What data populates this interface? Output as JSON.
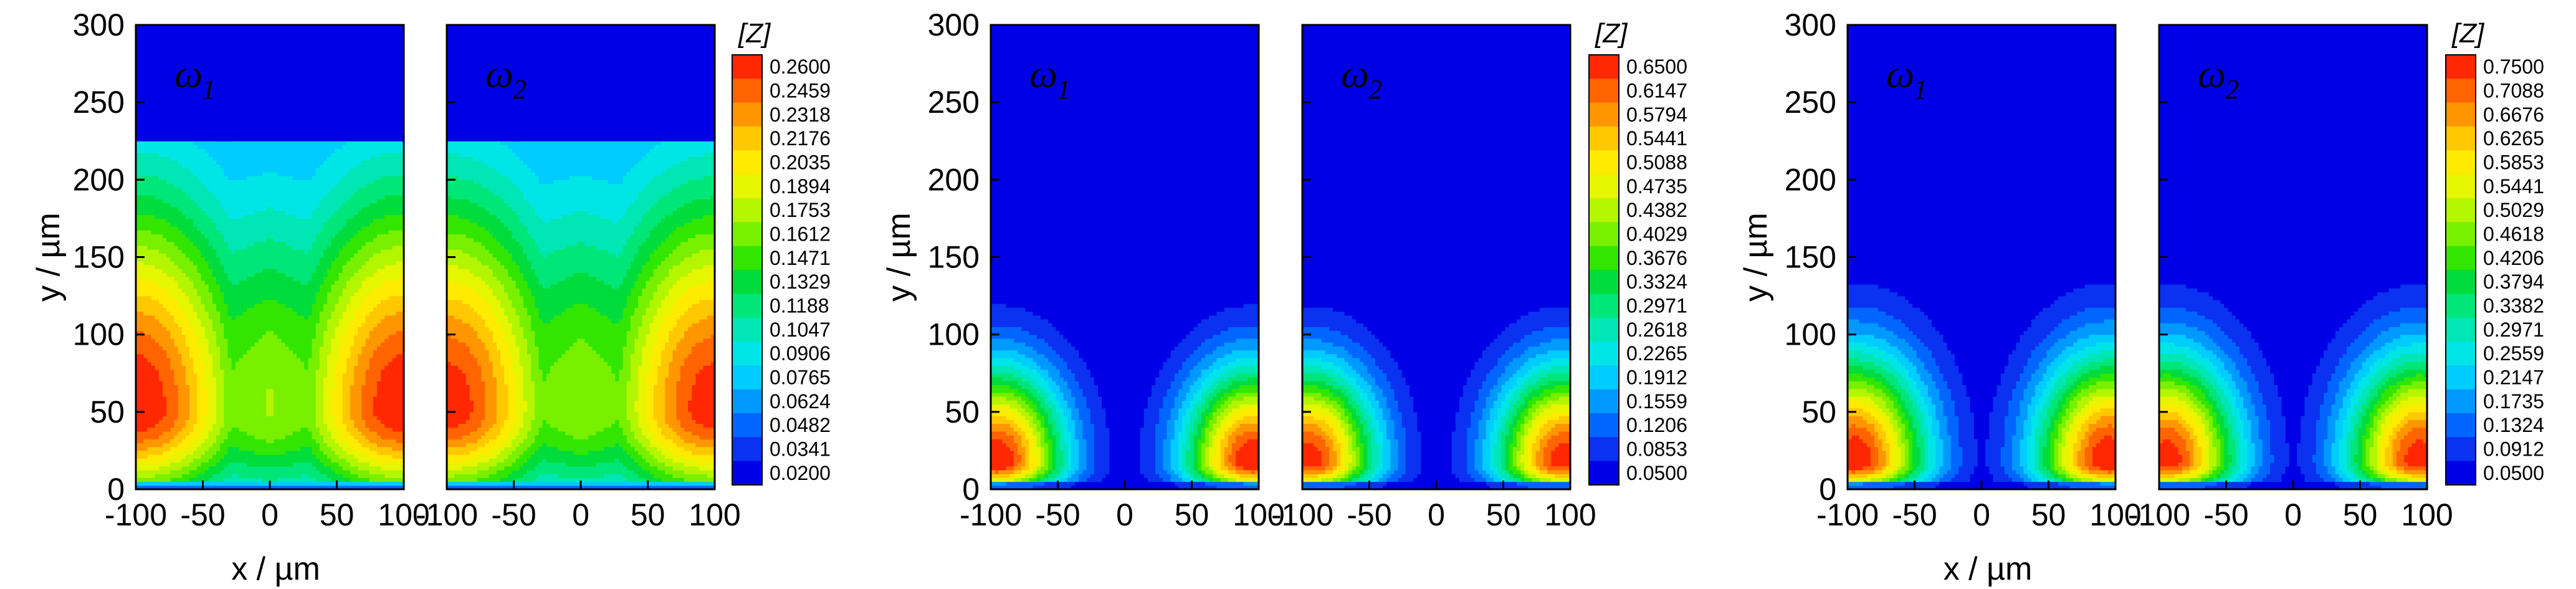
{
  "chart_data": [
    {
      "type": "heatmap",
      "group": 1,
      "xlabel": "x / µm",
      "ylabel": "y / µm",
      "xlim": [
        -100,
        100
      ],
      "ylim": [
        0,
        300
      ],
      "xticks": [
        "-100",
        "-50",
        "0",
        "50",
        "100"
      ],
      "yticks": [
        "0",
        "50",
        "100",
        "150",
        "200",
        "250",
        "300"
      ],
      "panels": [
        {
          "label": "ω",
          "sub": "1"
        },
        {
          "label": "ω",
          "sub": "2"
        }
      ],
      "colorbar": {
        "title": "[Z]",
        "levels": [
          "0.2600",
          "0.2459",
          "0.2318",
          "0.2176",
          "0.2035",
          "0.1894",
          "0.1753",
          "0.1612",
          "0.1471",
          "0.1329",
          "0.1188",
          "0.1047",
          "0.0906",
          "0.0765",
          "0.0624",
          "0.0482",
          "0.0341",
          "0.0200"
        ]
      },
      "field": {
        "peak_x": 100,
        "peak_y": 52,
        "sx": 60,
        "sy_low": 40,
        "sy_high": 95,
        "center_dip": 0.35,
        "floor": 0.15,
        "uniform_cutoff": 225
      }
    },
    {
      "type": "heatmap",
      "group": 2,
      "xlabel": "",
      "ylabel": "y / µm",
      "xlim": [
        -100,
        100
      ],
      "ylim": [
        0,
        300
      ],
      "xticks": [
        "-100",
        "-50",
        "0",
        "50",
        "100"
      ],
      "yticks": [
        "0",
        "50",
        "100",
        "150",
        "200",
        "250",
        "300"
      ],
      "panels": [
        {
          "label": "ω",
          "sub": "1"
        },
        {
          "label": "ω",
          "sub": "2"
        }
      ],
      "colorbar": {
        "title": "[Z]",
        "levels": [
          "0.6500",
          "0.6147",
          "0.5794",
          "0.5441",
          "0.5088",
          "0.4735",
          "0.4382",
          "0.4029",
          "0.3676",
          "0.3324",
          "0.2971",
          "0.2618",
          "0.2265",
          "0.1912",
          "0.1559",
          "0.1206",
          "0.0853",
          "0.0500"
        ]
      },
      "field": {
        "peak_x": 95,
        "peak_y": 18,
        "sx": 35,
        "sy_low": 14,
        "sy_high": 42,
        "center_dip": 0,
        "floor": 0,
        "uniform_cutoff": 300
      }
    },
    {
      "type": "heatmap",
      "group": 3,
      "xlabel": "x / µm",
      "ylabel": "y / µm",
      "xlim": [
        -100,
        100
      ],
      "ylim": [
        0,
        300
      ],
      "xticks": [
        "-100",
        "-50",
        "0",
        "50",
        "100"
      ],
      "yticks": [
        "0",
        "50",
        "100",
        "150",
        "200",
        "250",
        "300"
      ],
      "panels": [
        {
          "label": "ω",
          "sub": "1"
        },
        {
          "label": "ω",
          "sub": "2"
        }
      ],
      "colorbar": {
        "title": "[Z]",
        "levels": [
          "0.7500",
          "0.7088",
          "0.6676",
          "0.6265",
          "0.5853",
          "0.5441",
          "0.5029",
          "0.4618",
          "0.4206",
          "0.3794",
          "0.3382",
          "0.2971",
          "0.2559",
          "0.2147",
          "0.1735",
          "0.1324",
          "0.0912",
          "0.0500"
        ]
      },
      "field": {
        "peak_x": 95,
        "peak_y": 18,
        "sx": 38,
        "sy_low": 14,
        "sy_high": 48,
        "center_dip": 0,
        "floor": 0,
        "uniform_cutoff": 300
      }
    }
  ],
  "palette": [
    "#0000e6",
    "#0a32f0",
    "#0066ff",
    "#0099ff",
    "#00ccff",
    "#00e6e6",
    "#00e6b4",
    "#00e678",
    "#00dc3c",
    "#32e600",
    "#78f000",
    "#b4f500",
    "#e6f500",
    "#ffeb00",
    "#ffc800",
    "#ff9600",
    "#ff6400",
    "#ff2800"
  ]
}
